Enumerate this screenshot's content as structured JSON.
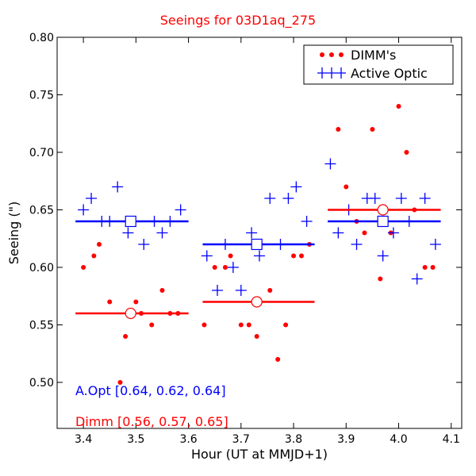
{
  "chart_data": {
    "type": "scatter",
    "title": "Seeings for 03D1aq_275",
    "xlabel": "Hour (UT at MMJD+1)",
    "ylabel": "Seeing (\")",
    "xlim": [
      3.35,
      4.12
    ],
    "ylim": [
      0.46,
      0.8
    ],
    "xticks": [
      "3.4",
      "3.5",
      "3.6",
      "3.7",
      "3.8",
      "3.9",
      "4.0",
      "4.1"
    ],
    "yticks": [
      "0.50",
      "0.55",
      "0.60",
      "0.65",
      "0.70",
      "0.75",
      "0.80"
    ],
    "grid": false,
    "legend_position": "top-right",
    "colors": {
      "dimm": "#ff0000",
      "active_optic": "#0000ff",
      "title": "#ff0000"
    },
    "series": [
      {
        "name": "DIMM's",
        "marker": "dot",
        "color": "#ff0000",
        "points": [
          [
            3.4,
            0.6
          ],
          [
            3.42,
            0.61
          ],
          [
            3.43,
            0.62
          ],
          [
            3.45,
            0.57
          ],
          [
            3.47,
            0.5
          ],
          [
            3.48,
            0.54
          ],
          [
            3.5,
            0.57
          ],
          [
            3.51,
            0.56
          ],
          [
            3.53,
            0.55
          ],
          [
            3.55,
            0.58
          ],
          [
            3.565,
            0.56
          ],
          [
            3.58,
            0.56
          ],
          [
            3.63,
            0.55
          ],
          [
            3.65,
            0.6
          ],
          [
            3.67,
            0.6
          ],
          [
            3.68,
            0.61
          ],
          [
            3.7,
            0.55
          ],
          [
            3.715,
            0.55
          ],
          [
            3.73,
            0.54
          ],
          [
            3.755,
            0.58
          ],
          [
            3.77,
            0.52
          ],
          [
            3.785,
            0.55
          ],
          [
            3.8,
            0.61
          ],
          [
            3.815,
            0.61
          ],
          [
            3.83,
            0.62
          ],
          [
            3.885,
            0.72
          ],
          [
            3.9,
            0.67
          ],
          [
            3.92,
            0.64
          ],
          [
            3.935,
            0.63
          ],
          [
            3.95,
            0.72
          ],
          [
            3.965,
            0.59
          ],
          [
            3.985,
            0.63
          ],
          [
            4.0,
            0.74
          ],
          [
            4.015,
            0.7
          ],
          [
            4.03,
            0.65
          ],
          [
            4.05,
            0.6
          ],
          [
            4.065,
            0.6
          ]
        ]
      },
      {
        "name": "Active Optic",
        "marker": "plus",
        "color": "#0000ff",
        "points": [
          [
            3.4,
            0.65
          ],
          [
            3.415,
            0.66
          ],
          [
            3.435,
            0.64
          ],
          [
            3.45,
            0.64
          ],
          [
            3.465,
            0.67
          ],
          [
            3.485,
            0.63
          ],
          [
            3.515,
            0.62
          ],
          [
            3.535,
            0.64
          ],
          [
            3.55,
            0.63
          ],
          [
            3.565,
            0.64
          ],
          [
            3.585,
            0.65
          ],
          [
            3.635,
            0.61
          ],
          [
            3.655,
            0.58
          ],
          [
            3.67,
            0.62
          ],
          [
            3.685,
            0.6
          ],
          [
            3.7,
            0.58
          ],
          [
            3.72,
            0.63
          ],
          [
            3.735,
            0.61
          ],
          [
            3.755,
            0.66
          ],
          [
            3.775,
            0.62
          ],
          [
            3.79,
            0.66
          ],
          [
            3.805,
            0.67
          ],
          [
            3.825,
            0.64
          ],
          [
            3.87,
            0.69
          ],
          [
            3.885,
            0.63
          ],
          [
            3.905,
            0.65
          ],
          [
            3.92,
            0.62
          ],
          [
            3.94,
            0.66
          ],
          [
            3.955,
            0.66
          ],
          [
            3.97,
            0.61
          ],
          [
            3.99,
            0.63
          ],
          [
            4.005,
            0.66
          ],
          [
            4.02,
            0.64
          ],
          [
            4.035,
            0.59
          ],
          [
            4.05,
            0.66
          ],
          [
            4.07,
            0.62
          ]
        ]
      }
    ],
    "segments": [
      {
        "series": "Active Optic",
        "x_start": 3.385,
        "x_end": 3.6,
        "value": 0.64,
        "mean_x": 3.49
      },
      {
        "series": "Active Optic",
        "x_start": 3.627,
        "x_end": 3.84,
        "value": 0.62,
        "mean_x": 3.73
      },
      {
        "series": "Active Optic",
        "x_start": 3.865,
        "x_end": 4.08,
        "value": 0.64,
        "mean_x": 3.97
      },
      {
        "series": "DIMM's",
        "x_start": 3.385,
        "x_end": 3.6,
        "value": 0.56,
        "mean_x": 3.49
      },
      {
        "series": "DIMM's",
        "x_start": 3.627,
        "x_end": 3.84,
        "value": 0.57,
        "mean_x": 3.73
      },
      {
        "series": "DIMM's",
        "x_start": 3.865,
        "x_end": 4.08,
        "value": 0.65,
        "mean_x": 3.97
      }
    ],
    "annotations": [
      {
        "text": "A.Opt [0.64, 0.62, 0.64]",
        "color": "#0000ff"
      },
      {
        "text": "Dimm [0.56, 0.57, 0.65]",
        "color": "#ff0000"
      }
    ]
  }
}
